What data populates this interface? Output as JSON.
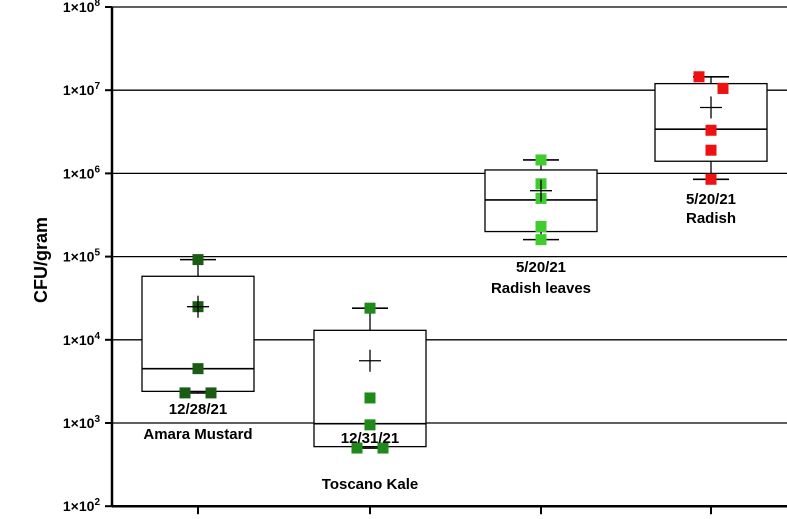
{
  "chart_data": {
    "type": "box",
    "ylabel": "CFU/gram",
    "yscale": "log",
    "ylim": [
      100,
      100000000
    ],
    "yticks": [
      {
        "value": 100,
        "label": "1×10"
      },
      {
        "value": 1000,
        "label": "1×10"
      },
      {
        "value": 10000,
        "label": "1×10"
      },
      {
        "value": 100000,
        "label": "1×10"
      },
      {
        "value": 1000000,
        "label": "1×10"
      },
      {
        "value": 10000000,
        "label": "1×10"
      },
      {
        "value": 100000000,
        "label": "1×10"
      }
    ],
    "ytick_exponents": [
      "2",
      "3",
      "4",
      "5",
      "6",
      "7",
      "8"
    ],
    "grid": "horizontal",
    "series": [
      {
        "date": "12/28/21",
        "name": "Amara Mustard",
        "color": "#1a5c14",
        "min": 2300,
        "q1": 2400,
        "median": 4500,
        "q3": 58000,
        "max": 92000,
        "mean": 25000,
        "points": [
          92000,
          25000,
          4500,
          2300,
          2300
        ]
      },
      {
        "date": "12/31/21",
        "name": "Toscano Kale",
        "color": "#1f8a1a",
        "min": 500,
        "q1": 520,
        "median": 980,
        "q3": 13000,
        "max": 24000,
        "mean": 5600,
        "points": [
          24000,
          2000,
          950,
          500,
          500
        ]
      },
      {
        "date": "5/20/21",
        "name": "Radish leaves",
        "color": "#3fcc2e",
        "min": 160000,
        "q1": 200000,
        "median": 480000,
        "q3": 1100000,
        "max": 1450000,
        "mean": 620000,
        "points": [
          1450000,
          750000,
          500000,
          230000,
          160000
        ]
      },
      {
        "date": "5/20/21",
        "name": "Radish",
        "color": "#ee1111",
        "min": 850000,
        "q1": 1400000,
        "median": 3400000,
        "q3": 12000000,
        "max": 14500000,
        "mean": 6200000,
        "points": [
          14500000,
          10500000,
          3300000,
          1900000,
          850000
        ]
      }
    ]
  }
}
